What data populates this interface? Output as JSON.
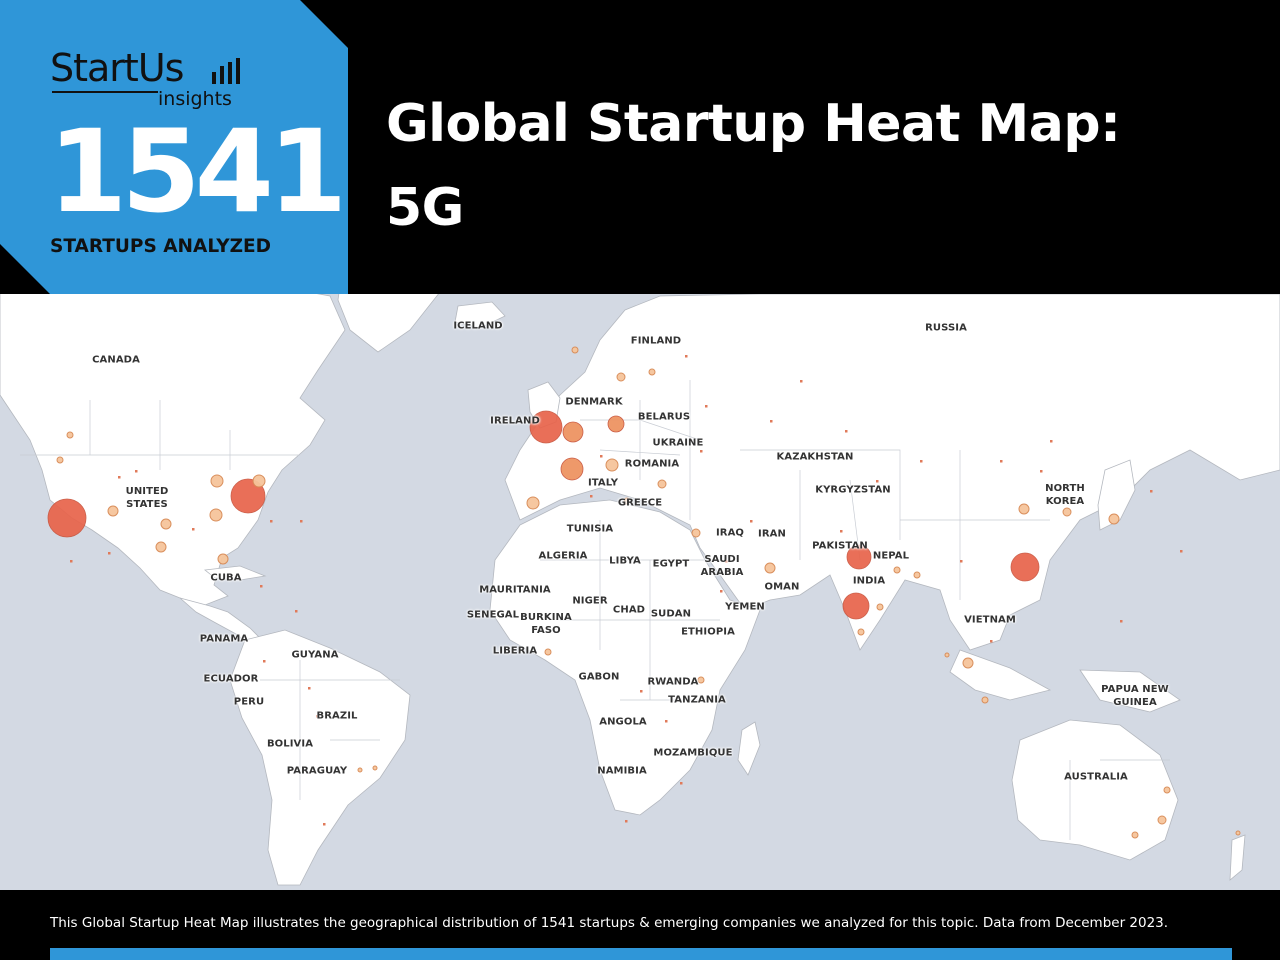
{
  "brand": {
    "name": "StartUs",
    "sub": "insights"
  },
  "badge": {
    "count": "1541",
    "caption": "STARTUPS ANALYZED"
  },
  "title": {
    "line1": "Global Startup Heat Map:",
    "line2": "5G"
  },
  "footer": {
    "text": "This Global Startup Heat Map illustrates the geographical distribution of 1541 startups & emerging companies we analyzed for this topic. Data from December 2023."
  },
  "colors": {
    "ocean": "#d3d9e3",
    "land": "#ffffff",
    "border": "#b4b8bf",
    "badge": "#2f96d8",
    "header": "#000000",
    "bubble_large": "#e8634a",
    "bubble_medium": "#ee9463",
    "bubble_small": "#f6c59b"
  },
  "map": {
    "labels": [
      {
        "id": "iceland",
        "text": "ICELAND"
      },
      {
        "id": "russia",
        "text": "RUSSIA"
      },
      {
        "id": "canada",
        "text": "CANADA"
      },
      {
        "id": "finland",
        "text": "FINLAND"
      },
      {
        "id": "denmark",
        "text": "DENMARK"
      },
      {
        "id": "belarus",
        "text": "BELARUS"
      },
      {
        "id": "ireland",
        "text": "IRELAND"
      },
      {
        "id": "ukraine",
        "text": "UKRAINE"
      },
      {
        "id": "romania",
        "text": "ROMANIA"
      },
      {
        "id": "kazakhstan",
        "text": "KAZAKHSTAN"
      },
      {
        "id": "united-states",
        "text": "UNITED\nSTATES"
      },
      {
        "id": "italy",
        "text": "ITALY"
      },
      {
        "id": "greece",
        "text": "GREECE"
      },
      {
        "id": "kyrgyzstan",
        "text": "KYRGYZSTAN"
      },
      {
        "id": "north-korea",
        "text": "NORTH\nKOREA"
      },
      {
        "id": "tunisia",
        "text": "TUNISIA"
      },
      {
        "id": "iraq",
        "text": "IRAQ"
      },
      {
        "id": "iran",
        "text": "IRAN"
      },
      {
        "id": "pakistan",
        "text": "PAKISTAN"
      },
      {
        "id": "algeria",
        "text": "ALGERIA"
      },
      {
        "id": "libya",
        "text": "LIBYA"
      },
      {
        "id": "egypt",
        "text": "EGYPT"
      },
      {
        "id": "saudi-arabia",
        "text": "SAUDI\nARABIA"
      },
      {
        "id": "nepal",
        "text": "NEPAL"
      },
      {
        "id": "cuba",
        "text": "CUBA"
      },
      {
        "id": "india",
        "text": "INDIA"
      },
      {
        "id": "oman",
        "text": "OMAN"
      },
      {
        "id": "mauritania",
        "text": "MAURITANIA"
      },
      {
        "id": "niger",
        "text": "NIGER"
      },
      {
        "id": "yemen",
        "text": "YEMEN"
      },
      {
        "id": "chad",
        "text": "CHAD"
      },
      {
        "id": "sudan",
        "text": "SUDAN"
      },
      {
        "id": "senegal",
        "text": "SENEGAL"
      },
      {
        "id": "burkina-faso",
        "text": "BURKINA\nFASO"
      },
      {
        "id": "vietnam",
        "text": "VIETNAM"
      },
      {
        "id": "ethiopia",
        "text": "ETHIOPIA"
      },
      {
        "id": "panama",
        "text": "PANAMA"
      },
      {
        "id": "liberia",
        "text": "LIBERIA"
      },
      {
        "id": "guyana",
        "text": "GUYANA"
      },
      {
        "id": "ecuador",
        "text": "ECUADOR"
      },
      {
        "id": "gabon",
        "text": "GABON"
      },
      {
        "id": "rwanda",
        "text": "RWANDA"
      },
      {
        "id": "papua-new-guinea",
        "text": "PAPUA NEW\nGUINEA"
      },
      {
        "id": "tanzania",
        "text": "TANZANIA"
      },
      {
        "id": "peru",
        "text": "PERU"
      },
      {
        "id": "brazil",
        "text": "BRAZIL"
      },
      {
        "id": "angola",
        "text": "ANGOLA"
      },
      {
        "id": "bolivia",
        "text": "BOLIVIA"
      },
      {
        "id": "mozambique",
        "text": "MOZAMBIQUE"
      },
      {
        "id": "paraguay",
        "text": "PARAGUAY"
      },
      {
        "id": "namibia",
        "text": "NAMIBIA"
      },
      {
        "id": "australia",
        "text": "AUSTRALIA"
      }
    ]
  }
}
